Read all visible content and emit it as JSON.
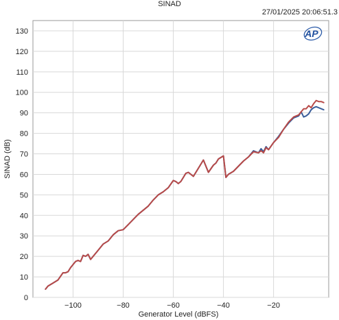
{
  "chart_data": {
    "type": "line",
    "title": "SINAD",
    "timestamp": "27/01/2025 20:06:51.3",
    "logo": "AP",
    "xlabel": "Generator Level (dBFS)",
    "ylabel": "SINAD (dB)",
    "xlim": [
      -116,
      2
    ],
    "ylim": [
      0,
      135
    ],
    "xticks": [
      -100,
      -80,
      -60,
      -40,
      -20
    ],
    "yticks": [
      0,
      10,
      20,
      30,
      40,
      50,
      60,
      70,
      80,
      90,
      100,
      110,
      120,
      130
    ],
    "grid": true,
    "colors": {
      "series_a": "#3b5f9b",
      "series_b": "#b84a48",
      "grid": "#d8d8d8"
    },
    "series": [
      {
        "color": "#3b5f9b",
        "x": [
          -111,
          -110,
          -108,
          -106,
          -104,
          -103,
          -102,
          -101,
          -100,
          -99,
          -98,
          -97,
          -96,
          -95,
          -94,
          -93,
          -92,
          -90,
          -88,
          -86,
          -84,
          -82,
          -80,
          -78,
          -76,
          -74,
          -72,
          -70,
          -68,
          -66,
          -64,
          -62,
          -60,
          -59,
          -58,
          -57,
          -56,
          -55,
          -54,
          -52,
          -50,
          -48,
          -46,
          -44,
          -43,
          -42,
          -40,
          -39,
          -38,
          -36,
          -34,
          -32,
          -30,
          -28,
          -26,
          -25,
          -24,
          -23,
          -22,
          -20,
          -18,
          -16,
          -14,
          -12,
          -10,
          -9,
          -8,
          -7,
          -6,
          -5,
          -4,
          -3,
          -2,
          -1,
          0
        ],
        "y": [
          4,
          5.5,
          7,
          8.5,
          12,
          12,
          12.5,
          14.5,
          16,
          17.5,
          18,
          17.5,
          20.5,
          20,
          21,
          18.5,
          20,
          23,
          26,
          27.5,
          30.5,
          32.5,
          33,
          35.5,
          38,
          40.5,
          42.5,
          44.5,
          47.5,
          50,
          51.5,
          53.5,
          57,
          56.5,
          55.5,
          56.5,
          58.5,
          60.5,
          61,
          59,
          63,
          67,
          61,
          64.5,
          65.5,
          67.5,
          69,
          58.5,
          60,
          61.5,
          64,
          66.5,
          68.5,
          71.5,
          70.5,
          72.5,
          71,
          73.5,
          72,
          75.5,
          78.5,
          82,
          85,
          87.5,
          88.5,
          90.5,
          88,
          88.5,
          89.5,
          91.5,
          92.5,
          93,
          92.5,
          92,
          91.5
        ]
      },
      {
        "color": "#b84a48",
        "x": [
          -111,
          -110,
          -108,
          -106,
          -104,
          -103,
          -102,
          -101,
          -100,
          -99,
          -98,
          -97,
          -96,
          -95,
          -94,
          -93,
          -92,
          -90,
          -88,
          -86,
          -84,
          -82,
          -80,
          -78,
          -76,
          -74,
          -72,
          -70,
          -68,
          -66,
          -64,
          -62,
          -60,
          -59,
          -58,
          -57,
          -56,
          -55,
          -54,
          -52,
          -50,
          -48,
          -46,
          -44,
          -43,
          -42,
          -40,
          -39,
          -38,
          -36,
          -34,
          -32,
          -30,
          -28,
          -26,
          -25,
          -24,
          -23,
          -22,
          -20,
          -18,
          -16,
          -14,
          -12,
          -10,
          -9,
          -8,
          -7,
          -6,
          -5,
          -4,
          -3,
          -2,
          -1,
          0
        ],
        "y": [
          4,
          5.5,
          7,
          8.5,
          12,
          12,
          12.5,
          14.5,
          16,
          17.5,
          18,
          17.5,
          20.5,
          20,
          21,
          18.5,
          20,
          23,
          26,
          27.5,
          30.5,
          32.5,
          33,
          35.5,
          38,
          40.5,
          42.5,
          44.5,
          47.5,
          50,
          51.5,
          53.5,
          57,
          56.5,
          55.5,
          56.5,
          58.5,
          60.5,
          61,
          59,
          63,
          67,
          61,
          64.5,
          65.5,
          67.5,
          69,
          58.5,
          60,
          61.5,
          64,
          66.5,
          68.5,
          71,
          70.5,
          71.5,
          70.5,
          73,
          72,
          75.5,
          78,
          82,
          85.5,
          88,
          89,
          90.5,
          92,
          92,
          93.5,
          92.5,
          94.5,
          96,
          95.5,
          95.5,
          95
        ]
      }
    ]
  }
}
